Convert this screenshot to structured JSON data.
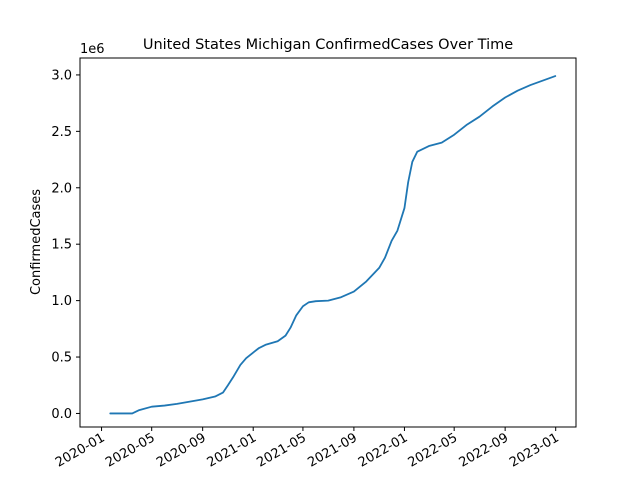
{
  "chart_data": {
    "type": "line",
    "title": "United States Michigan ConfirmedCases Over Time",
    "xlabel": "",
    "ylabel": "ConfirmedCases",
    "y_offset_label": "1e6",
    "ylim": [
      -120000,
      3150000
    ],
    "xlim": [
      "2019-11-10",
      "2023-02-19"
    ],
    "x_ticks": [
      "2020-01-01",
      "2020-05-01",
      "2020-09-01",
      "2021-01-01",
      "2021-05-01",
      "2021-09-01",
      "2022-01-01",
      "2022-05-01",
      "2022-09-01",
      "2023-01-01"
    ],
    "x_tick_labels": [
      "2020-01",
      "2020-05",
      "2020-09",
      "2021-01",
      "2021-05",
      "2021-09",
      "2022-01",
      "2022-05",
      "2022-09",
      "2023-01"
    ],
    "y_ticks": [
      0,
      500000,
      1000000,
      1500000,
      2000000,
      2500000,
      3000000
    ],
    "y_tick_labels": [
      "0.0",
      "0.5",
      "1.0",
      "1.5",
      "2.0",
      "2.5",
      "3.0"
    ],
    "grid": false,
    "legend": "none",
    "series": [
      {
        "color": "#1f77b4",
        "x": [
          "2020-01-22",
          "2020-03-15",
          "2020-04-01",
          "2020-05-01",
          "2020-06-01",
          "2020-07-01",
          "2020-08-01",
          "2020-09-01",
          "2020-10-01",
          "2020-10-20",
          "2020-11-01",
          "2020-11-15",
          "2020-12-01",
          "2020-12-15",
          "2021-01-01",
          "2021-01-15",
          "2021-02-01",
          "2021-03-01",
          "2021-03-20",
          "2021-04-01",
          "2021-04-15",
          "2021-05-01",
          "2021-05-15",
          "2021-06-01",
          "2021-07-01",
          "2021-08-01",
          "2021-09-01",
          "2021-10-01",
          "2021-11-01",
          "2021-11-15",
          "2021-12-01",
          "2021-12-15",
          "2022-01-01",
          "2022-01-10",
          "2022-01-20",
          "2022-02-01",
          "2022-03-01",
          "2022-04-01",
          "2022-05-01",
          "2022-06-01",
          "2022-07-01",
          "2022-08-01",
          "2022-09-01",
          "2022-10-01",
          "2022-11-01",
          "2022-12-01",
          "2022-12-31"
        ],
        "y": [
          0,
          0,
          30000,
          60000,
          70000,
          85000,
          105000,
          125000,
          150000,
          185000,
          250000,
          330000,
          430000,
          490000,
          540000,
          580000,
          610000,
          640000,
          690000,
          760000,
          870000,
          950000,
          985000,
          995000,
          1000000,
          1030000,
          1080000,
          1170000,
          1290000,
          1380000,
          1530000,
          1620000,
          1820000,
          2050000,
          2230000,
          2320000,
          2370000,
          2400000,
          2470000,
          2560000,
          2630000,
          2720000,
          2800000,
          2860000,
          2910000,
          2950000,
          2990000
        ]
      }
    ]
  }
}
